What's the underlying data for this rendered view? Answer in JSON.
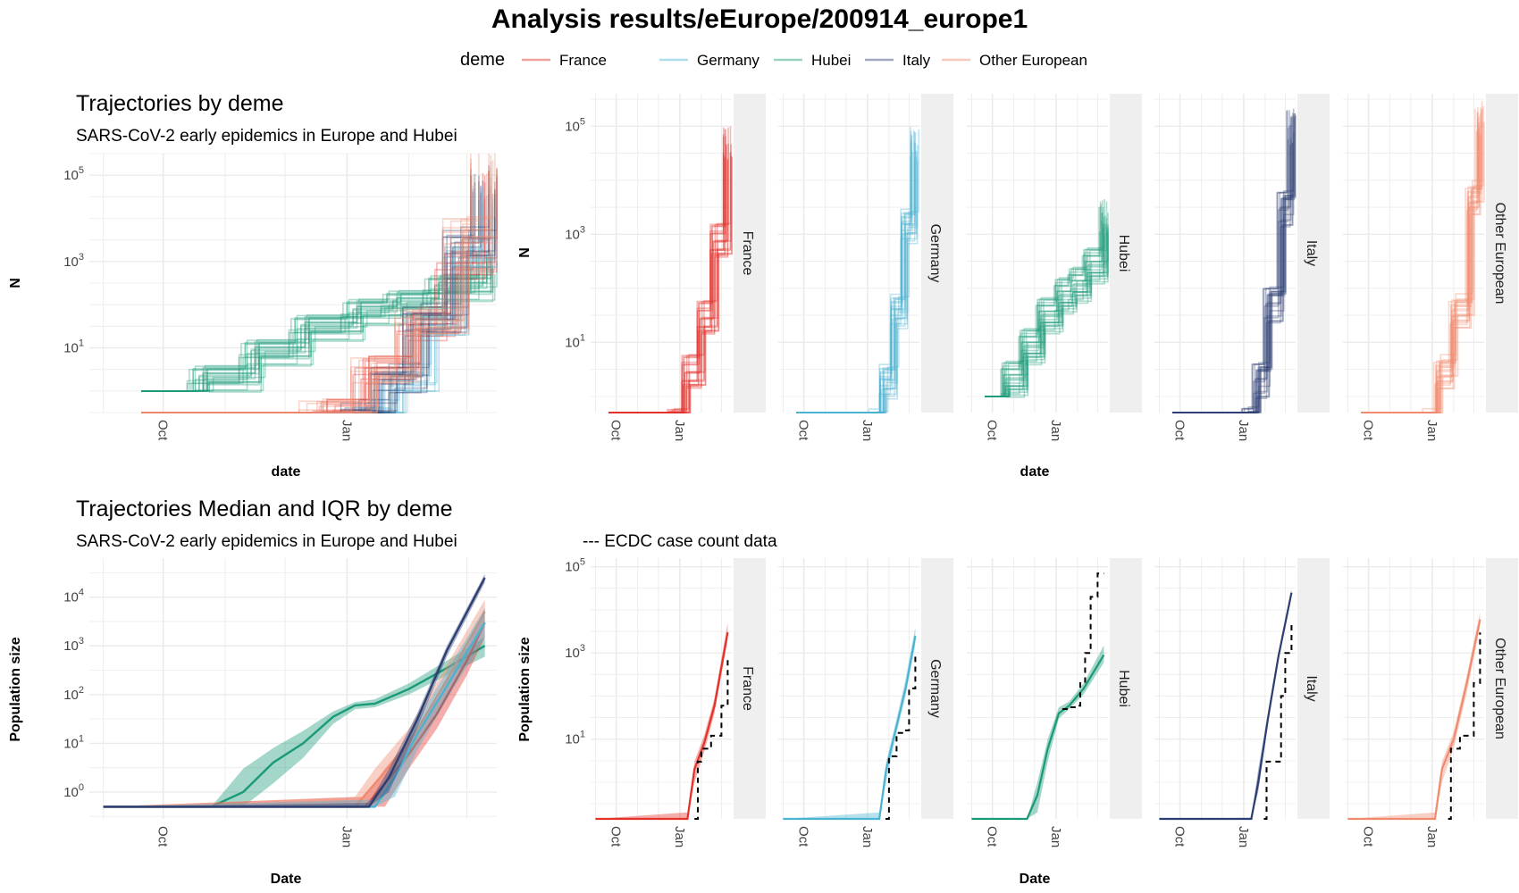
{
  "figure": {
    "title": "Analysis  results/eEurope/200914_europe1",
    "legend_title": "deme",
    "legend": [
      {
        "name": "France",
        "color": "#e3322a"
      },
      {
        "name": "Germany",
        "color": "#4bb3d2"
      },
      {
        "name": "Hubei",
        "color": "#1b9a78"
      },
      {
        "name": "Italy",
        "color": "#2d3e72"
      },
      {
        "name": "Other European",
        "color": "#f08a6e"
      }
    ],
    "legend_position": "top",
    "grid": true
  },
  "chart_data": [
    {
      "id": "traj-all",
      "type": "line",
      "title": "Trajectories by deme",
      "subtitle": "SARS-CoV-2 early epidemics in Europe and Hubei",
      "xlabel": "date",
      "ylabel": "N",
      "y_scale": "log10",
      "x_ticks": [
        "Oct",
        "Jan"
      ],
      "y_ticks": [
        "10^1",
        "10^3",
        "10^5"
      ],
      "series": [
        {
          "name": "Hubei",
          "color": "#1b9a78",
          "x": [
            "2019-09-20",
            "2019-10-20",
            "2019-11-15",
            "2019-12-10",
            "2020-01-05",
            "2020-01-25",
            "2020-02-15",
            "2020-03-10"
          ],
          "y": [
            1,
            2,
            8,
            30,
            70,
            110,
            250,
            1000
          ]
        },
        {
          "name": "France",
          "color": "#e3322a",
          "x": [
            "2019-09-20",
            "2019-12-20",
            "2020-01-10",
            "2020-02-01",
            "2020-02-20",
            "2020-03-10"
          ],
          "y": [
            0.3,
            0.3,
            3,
            30,
            800,
            60000
          ]
        },
        {
          "name": "Germany",
          "color": "#4bb3d2",
          "x": [
            "2019-09-20",
            "2020-01-10",
            "2020-01-25",
            "2020-02-10",
            "2020-02-25",
            "2020-03-10"
          ],
          "y": [
            0.3,
            0.3,
            2,
            40,
            1500,
            40000
          ]
        },
        {
          "name": "Italy",
          "color": "#2d3e72",
          "x": [
            "2019-09-20",
            "2020-01-05",
            "2020-01-20",
            "2020-02-05",
            "2020-02-25",
            "2020-03-10"
          ],
          "y": [
            0.3,
            0.3,
            2,
            50,
            3000,
            80000
          ]
        },
        {
          "name": "Other European",
          "color": "#f08a6e",
          "x": [
            "2019-09-20",
            "2019-12-15",
            "2020-01-10",
            "2020-02-01",
            "2020-02-25",
            "2020-03-10"
          ],
          "y": [
            0.3,
            0.3,
            3,
            40,
            5000,
            200000
          ]
        }
      ]
    },
    {
      "id": "traj-facet",
      "type": "line",
      "xlabel": "date",
      "ylabel": "N",
      "y_scale": "log10",
      "x_ticks": [
        "Oct",
        "Jan"
      ],
      "y_ticks": [
        "10^1",
        "10^3",
        "10^5"
      ],
      "facets": [
        {
          "name": "France",
          "color": "#e3322a",
          "x": [
            "2019-09-20",
            "2019-12-20",
            "2020-01-10",
            "2020-02-01",
            "2020-02-20",
            "2020-03-10"
          ],
          "y": [
            0.3,
            0.3,
            3,
            30,
            800,
            50000
          ]
        },
        {
          "name": "Germany",
          "color": "#4bb3d2",
          "x": [
            "2019-09-20",
            "2020-01-10",
            "2020-01-25",
            "2020-02-10",
            "2020-02-25",
            "2020-03-10"
          ],
          "y": [
            0.3,
            0.3,
            2,
            40,
            1500,
            50000
          ]
        },
        {
          "name": "Hubei",
          "color": "#1b9a78",
          "x": [
            "2019-09-20",
            "2019-10-20",
            "2019-11-15",
            "2019-12-10",
            "2020-01-05",
            "2020-01-25",
            "2020-02-15",
            "2020-03-10"
          ],
          "y": [
            1,
            2,
            8,
            30,
            70,
            110,
            250,
            2000
          ]
        },
        {
          "name": "Italy",
          "color": "#2d3e72",
          "x": [
            "2019-09-20",
            "2020-01-05",
            "2020-01-20",
            "2020-02-05",
            "2020-02-25",
            "2020-03-10"
          ],
          "y": [
            0.3,
            0.3,
            2,
            50,
            3000,
            100000
          ]
        },
        {
          "name": "Other European",
          "color": "#f08a6e",
          "x": [
            "2019-09-20",
            "2019-12-15",
            "2020-01-10",
            "2020-02-01",
            "2020-02-25",
            "2020-03-10"
          ],
          "y": [
            0.3,
            0.3,
            3,
            40,
            5000,
            150000
          ]
        }
      ]
    },
    {
      "id": "median-all",
      "type": "area",
      "title": "Trajectories Median and IQR by deme",
      "subtitle": "SARS-CoV-2 early epidemics in Europe and Hubei",
      "xlabel": "Date",
      "ylabel": "Population size",
      "y_scale": "log10",
      "x_ticks": [
        "Oct",
        "Jan"
      ],
      "y_ticks": [
        "10^0",
        "10^1",
        "10^2",
        "10^3",
        "10^4"
      ],
      "series": [
        {
          "name": "Hubei",
          "color": "#1b9a78",
          "x": [
            "2019-09-01",
            "2019-10-25",
            "2019-11-10",
            "2019-11-25",
            "2019-12-10",
            "2019-12-25",
            "2020-01-05",
            "2020-01-15",
            "2020-02-01",
            "2020-02-20",
            "2020-03-10"
          ],
          "median": [
            0.5,
            0.5,
            1,
            4,
            10,
            35,
            60,
            65,
            130,
            350,
            1000
          ],
          "low": [
            0.5,
            0.5,
            0.5,
            1.5,
            5,
            25,
            50,
            55,
            100,
            250,
            600
          ],
          "high": [
            0.5,
            0.5,
            3,
            8,
            18,
            45,
            70,
            80,
            170,
            500,
            1500
          ]
        },
        {
          "name": "France",
          "color": "#e3322a",
          "x": [
            "2019-09-01",
            "2020-01-10",
            "2020-01-20",
            "2020-02-01",
            "2020-02-15",
            "2020-03-01",
            "2020-03-10"
          ],
          "median": [
            0.5,
            0.5,
            1.5,
            6,
            40,
            500,
            3000
          ],
          "low": [
            0.5,
            0.5,
            0.5,
            3,
            20,
            250,
            1500
          ],
          "high": [
            0.5,
            0.8,
            3,
            12,
            80,
            900,
            6000
          ]
        },
        {
          "name": "Germany",
          "color": "#4bb3d2",
          "x": [
            "2019-09-01",
            "2020-01-15",
            "2020-01-25",
            "2020-02-05",
            "2020-02-20",
            "2020-03-10"
          ],
          "median": [
            0.5,
            0.5,
            2,
            15,
            150,
            3000
          ],
          "low": [
            0.5,
            0.5,
            0.8,
            7,
            80,
            1500
          ],
          "high": [
            0.5,
            0.7,
            4,
            30,
            300,
            6000
          ]
        },
        {
          "name": "Italy",
          "color": "#2d3e72",
          "x": [
            "2019-09-01",
            "2020-01-12",
            "2020-01-22",
            "2020-02-05",
            "2020-02-20",
            "2020-03-10"
          ],
          "median": [
            0.5,
            0.5,
            2,
            30,
            800,
            25000
          ],
          "low": [
            0.5,
            0.5,
            1,
            20,
            600,
            20000
          ],
          "high": [
            0.5,
            0.6,
            3,
            40,
            1000,
            30000
          ]
        },
        {
          "name": "Other European",
          "color": "#f08a6e",
          "x": [
            "2019-09-01",
            "2020-01-05",
            "2020-01-15",
            "2020-02-01",
            "2020-02-20",
            "2020-03-10"
          ],
          "median": [
            0.5,
            0.5,
            1.5,
            10,
            200,
            5000
          ],
          "low": [
            0.5,
            0.5,
            0.5,
            5,
            100,
            2500
          ],
          "high": [
            0.5,
            0.8,
            3,
            20,
            400,
            9000
          ]
        }
      ]
    },
    {
      "id": "median-facet",
      "type": "area",
      "subtitle": "--- ECDC case count data",
      "xlabel": "Date",
      "ylabel": "Population size",
      "y_scale": "log10",
      "x_ticks": [
        "Oct",
        "Jan"
      ],
      "y_ticks": [
        "10^1",
        "10^3",
        "10^5"
      ],
      "facets": [
        {
          "name": "France",
          "color": "#e3322a",
          "x": [
            "2019-09-01",
            "2020-01-12",
            "2020-01-22",
            "2020-02-05",
            "2020-02-20",
            "2020-03-10"
          ],
          "median": [
            0.1,
            0.1,
            2,
            8,
            60,
            3000
          ],
          "low": [
            0.1,
            0.1,
            1,
            5,
            40,
            2000
          ],
          "high": [
            0.1,
            0.2,
            3,
            12,
            90,
            5000
          ],
          "ecdc_x": [
            "2020-01-22",
            "2020-01-24",
            "2020-01-27",
            "2020-02-01",
            "2020-02-15",
            "2020-02-28",
            "2020-03-01",
            "2020-03-10"
          ],
          "ecdc_y": [
            0.1,
            0.1,
            3,
            6,
            12,
            12,
            60,
            700
          ]
        },
        {
          "name": "Germany",
          "color": "#4bb3d2",
          "x": [
            "2019-09-01",
            "2020-01-18",
            "2020-01-28",
            "2020-02-10",
            "2020-02-25",
            "2020-03-10"
          ],
          "median": [
            0.1,
            0.1,
            2,
            15,
            150,
            2500
          ],
          "low": [
            0.1,
            0.1,
            1,
            10,
            100,
            1500
          ],
          "high": [
            0.1,
            0.2,
            3,
            22,
            250,
            4000
          ],
          "ecdc_x": [
            "2020-01-27",
            "2020-01-29",
            "2020-02-01",
            "2020-02-12",
            "2020-02-24",
            "2020-03-01",
            "2020-03-10"
          ],
          "ecdc_y": [
            0.1,
            0.1,
            4,
            14,
            16,
            150,
            1000
          ]
        },
        {
          "name": "Hubei",
          "color": "#1b9a78",
          "x": [
            "2019-09-01",
            "2019-11-20",
            "2019-12-05",
            "2019-12-20",
            "2020-01-05",
            "2020-01-20",
            "2020-02-10",
            "2020-03-10"
          ],
          "median": [
            0.1,
            0.1,
            0.5,
            6,
            40,
            60,
            150,
            900
          ],
          "low": [
            0.1,
            0.1,
            0.2,
            3,
            30,
            50,
            110,
            600
          ],
          "high": [
            0.1,
            0.1,
            1,
            10,
            55,
            75,
            200,
            1500
          ],
          "ecdc_x": [
            "2020-01-10",
            "2020-01-15",
            "2020-01-20",
            "2020-01-28",
            "2020-02-05",
            "2020-02-12",
            "2020-02-20",
            "2020-03-01",
            "2020-03-10"
          ],
          "ecdc_y": [
            50,
            50,
            55,
            60,
            200,
            1000,
            20000,
            70000,
            70000
          ]
        },
        {
          "name": "Italy",
          "color": "#2d3e72",
          "x": [
            "2019-09-01",
            "2020-01-12",
            "2020-01-22",
            "2020-02-05",
            "2020-02-20",
            "2020-03-10"
          ],
          "median": [
            0.1,
            0.1,
            1,
            30,
            800,
            25000
          ],
          "low": [
            0.1,
            0.1,
            0.6,
            22,
            600,
            20000
          ],
          "high": [
            0.1,
            0.15,
            2,
            40,
            1000,
            30000
          ],
          "ecdc_x": [
            "2020-01-30",
            "2020-02-01",
            "2020-02-03",
            "2020-02-18",
            "2020-02-21",
            "2020-02-24",
            "2020-03-01",
            "2020-03-10"
          ],
          "ecdc_y": [
            0.1,
            0.1,
            3,
            3,
            3,
            100,
            1000,
            5000
          ]
        },
        {
          "name": "Other European",
          "color": "#f08a6e",
          "x": [
            "2019-09-01",
            "2020-01-05",
            "2020-01-15",
            "2020-02-01",
            "2020-02-20",
            "2020-03-10"
          ],
          "median": [
            0.1,
            0.1,
            2,
            10,
            200,
            6000
          ],
          "low": [
            0.1,
            0.1,
            1,
            6,
            120,
            4000
          ],
          "high": [
            0.1,
            0.2,
            3,
            15,
            300,
            9000
          ],
          "ecdc_x": [
            "2020-01-24",
            "2020-01-26",
            "2020-01-28",
            "2020-02-10",
            "2020-02-25",
            "2020-03-01",
            "2020-03-10"
          ],
          "ecdc_y": [
            0.1,
            0.1,
            6,
            12,
            12,
            200,
            3000
          ]
        }
      ]
    }
  ]
}
